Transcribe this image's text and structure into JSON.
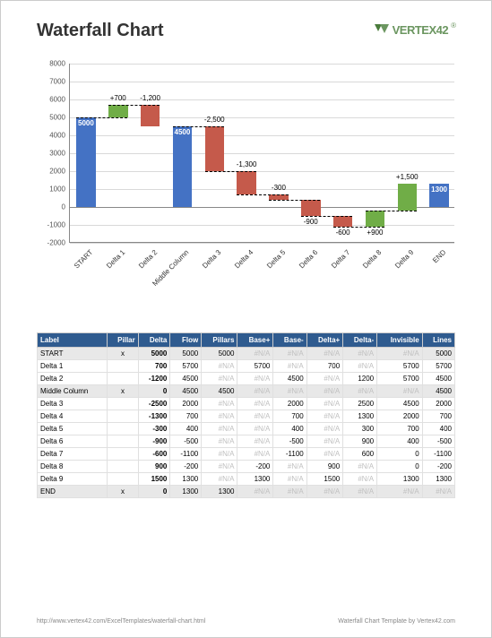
{
  "header": {
    "title": "Waterfall Chart",
    "logo_text": "VERTEX",
    "logo_num": "42"
  },
  "chart": {
    "ylim": [
      -2000,
      8000
    ],
    "ytick_step": 1000,
    "categories": [
      "START",
      "Delta 1",
      "Delta 2",
      "Middle Column",
      "Delta 3",
      "Delta 4",
      "Delta 5",
      "Delta 6",
      "Delta 7",
      "Delta 8",
      "Delta 9",
      "END"
    ],
    "colors": {
      "pillar": "#4472c4",
      "increase": "#70ad47",
      "decrease": "#c55a4b",
      "grid": "#d9d9d9",
      "axis": "#888888"
    },
    "bars": [
      {
        "type": "pillar",
        "base": 0,
        "top": 5000,
        "label": "5000",
        "label_pos": "inside",
        "color": "#4472c4"
      },
      {
        "type": "inc",
        "base": 5000,
        "top": 5700,
        "label": "+700",
        "label_pos": "above",
        "color": "#70ad47"
      },
      {
        "type": "dec",
        "base": 5700,
        "top": 4500,
        "label": "-1,200",
        "label_pos": "above",
        "color": "#c55a4b"
      },
      {
        "type": "pillar",
        "base": 0,
        "top": 4500,
        "label": "4500",
        "label_pos": "inside",
        "color": "#4472c4"
      },
      {
        "type": "dec",
        "base": 4500,
        "top": 2000,
        "label": "-2,500",
        "label_pos": "above",
        "color": "#c55a4b"
      },
      {
        "type": "dec",
        "base": 2000,
        "top": 700,
        "label": "-1,300",
        "label_pos": "above",
        "color": "#c55a4b"
      },
      {
        "type": "dec",
        "base": 700,
        "top": 400,
        "label": "-300",
        "label_pos": "above",
        "color": "#c55a4b"
      },
      {
        "type": "dec",
        "base": 400,
        "top": -500,
        "label": "-900",
        "label_pos": "below",
        "color": "#c55a4b"
      },
      {
        "type": "dec",
        "base": -500,
        "top": -1100,
        "label": "-600",
        "label_pos": "below",
        "color": "#c55a4b"
      },
      {
        "type": "inc",
        "base": -1100,
        "top": -200,
        "label": "+900",
        "label_pos": "below",
        "color": "#70ad47"
      },
      {
        "type": "inc",
        "base": -200,
        "top": 1300,
        "label": "+1,500",
        "label_pos": "above",
        "color": "#70ad47"
      },
      {
        "type": "pillar",
        "base": 0,
        "top": 1300,
        "label": "1300",
        "label_pos": "inside",
        "color": "#4472c4"
      }
    ]
  },
  "table": {
    "columns": [
      "Label",
      "Pillar",
      "Delta",
      "Flow",
      "Pillars",
      "Base+",
      "Base-",
      "Delta+",
      "Delta-",
      "Invisible",
      "Lines"
    ],
    "rows": [
      {
        "hl": true,
        "c": [
          "START",
          "x",
          "5000",
          "5000",
          "5000",
          "#N/A",
          "#N/A",
          "#N/A",
          "#N/A",
          "#N/A",
          "5000"
        ]
      },
      {
        "c": [
          "Delta 1",
          "",
          "700",
          "5700",
          "#N/A",
          "5700",
          "#N/A",
          "700",
          "#N/A",
          "5700",
          "5700"
        ]
      },
      {
        "c": [
          "Delta 2",
          "",
          "-1200",
          "4500",
          "#N/A",
          "#N/A",
          "4500",
          "#N/A",
          "1200",
          "5700",
          "4500"
        ]
      },
      {
        "hl": true,
        "c": [
          "Middle Column",
          "x",
          "0",
          "4500",
          "4500",
          "#N/A",
          "#N/A",
          "#N/A",
          "#N/A",
          "#N/A",
          "4500"
        ]
      },
      {
        "c": [
          "Delta 3",
          "",
          "-2500",
          "2000",
          "#N/A",
          "#N/A",
          "2000",
          "#N/A",
          "2500",
          "4500",
          "2000"
        ]
      },
      {
        "c": [
          "Delta 4",
          "",
          "-1300",
          "700",
          "#N/A",
          "#N/A",
          "700",
          "#N/A",
          "1300",
          "2000",
          "700"
        ]
      },
      {
        "c": [
          "Delta 5",
          "",
          "-300",
          "400",
          "#N/A",
          "#N/A",
          "400",
          "#N/A",
          "300",
          "700",
          "400"
        ]
      },
      {
        "c": [
          "Delta 6",
          "",
          "-900",
          "-500",
          "#N/A",
          "#N/A",
          "-500",
          "#N/A",
          "900",
          "400",
          "-500"
        ]
      },
      {
        "c": [
          "Delta 7",
          "",
          "-600",
          "-1100",
          "#N/A",
          "#N/A",
          "-1100",
          "#N/A",
          "600",
          "0",
          "-1100"
        ]
      },
      {
        "c": [
          "Delta 8",
          "",
          "900",
          "-200",
          "#N/A",
          "-200",
          "#N/A",
          "900",
          "#N/A",
          "0",
          "-200"
        ]
      },
      {
        "c": [
          "Delta 9",
          "",
          "1500",
          "1300",
          "#N/A",
          "1300",
          "#N/A",
          "1500",
          "#N/A",
          "1300",
          "1300"
        ]
      },
      {
        "hl": true,
        "c": [
          "END",
          "x",
          "0",
          "1300",
          "1300",
          "#N/A",
          "#N/A",
          "#N/A",
          "#N/A",
          "#N/A",
          "#N/A"
        ]
      }
    ]
  },
  "footer": {
    "left": "http://www.vertex42.com/ExcelTemplates/waterfall-chart.html",
    "right": "Waterfall Chart Template by Vertex42.com"
  }
}
